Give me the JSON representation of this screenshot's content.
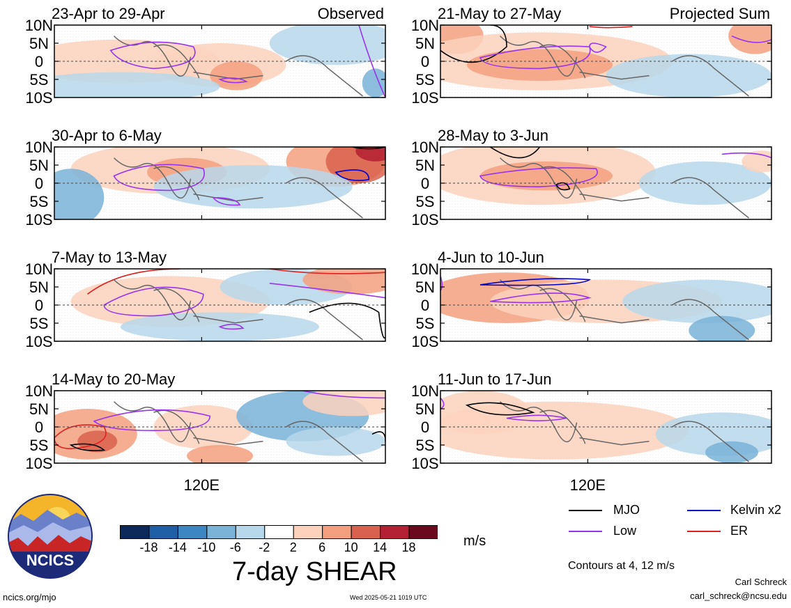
{
  "figure": {
    "title": "7-day SHEAR",
    "units": "m/s",
    "x_tick": "120E",
    "y_ticks": [
      "10N",
      "5N",
      "0",
      "5S",
      "10S"
    ],
    "left_column_label": "Observed",
    "right_column_label": "Projected Sum",
    "contours_note": "Contours at 4, 12 m/s",
    "author": "Carl Schreck",
    "email": "carl_schreck@ncsu.edu",
    "site": "ncics.org/mjo",
    "timestamp": "Wed 2025-05-21 1019 UTC",
    "logo_text": "NCICS"
  },
  "colorbar": {
    "tick_labels": [
      "-18",
      "-14",
      "-10",
      "-6",
      "-2",
      "2",
      "6",
      "10",
      "14",
      "18"
    ],
    "colors": [
      "#0b2a5b",
      "#1f5fa6",
      "#3c87c2",
      "#7ab3d8",
      "#b7d7ea",
      "#ffffff",
      "#fcd2bd",
      "#f4a07f",
      "#d9624e",
      "#b42033",
      "#6b0a1e"
    ]
  },
  "legend": [
    {
      "label": "MJO",
      "color": "#000000"
    },
    {
      "label": "Kelvin x2",
      "color": "#0000cc"
    },
    {
      "label": "Low",
      "color": "#9933ee"
    },
    {
      "label": "ER",
      "color": "#dd2222"
    }
  ],
  "chart_data": [
    {
      "type": "heatmap",
      "title": "23-Apr to 29-Apr",
      "column": "Observed"
    },
    {
      "type": "heatmap",
      "title": "30-Apr to 6-May",
      "column": "Observed"
    },
    {
      "type": "heatmap",
      "title": "7-May to 13-May",
      "column": "Observed"
    },
    {
      "type": "heatmap",
      "title": "14-May to 20-May",
      "column": "Observed"
    },
    {
      "type": "heatmap",
      "title": "21-May to 27-May",
      "column": "Projected Sum"
    },
    {
      "type": "heatmap",
      "title": "28-May to 3-Jun",
      "column": "Projected Sum"
    },
    {
      "type": "heatmap",
      "title": "4-Jun to 10-Jun",
      "column": "Projected Sum"
    },
    {
      "type": "heatmap",
      "title": "11-Jun to 17-Jun",
      "column": "Projected Sum"
    }
  ]
}
